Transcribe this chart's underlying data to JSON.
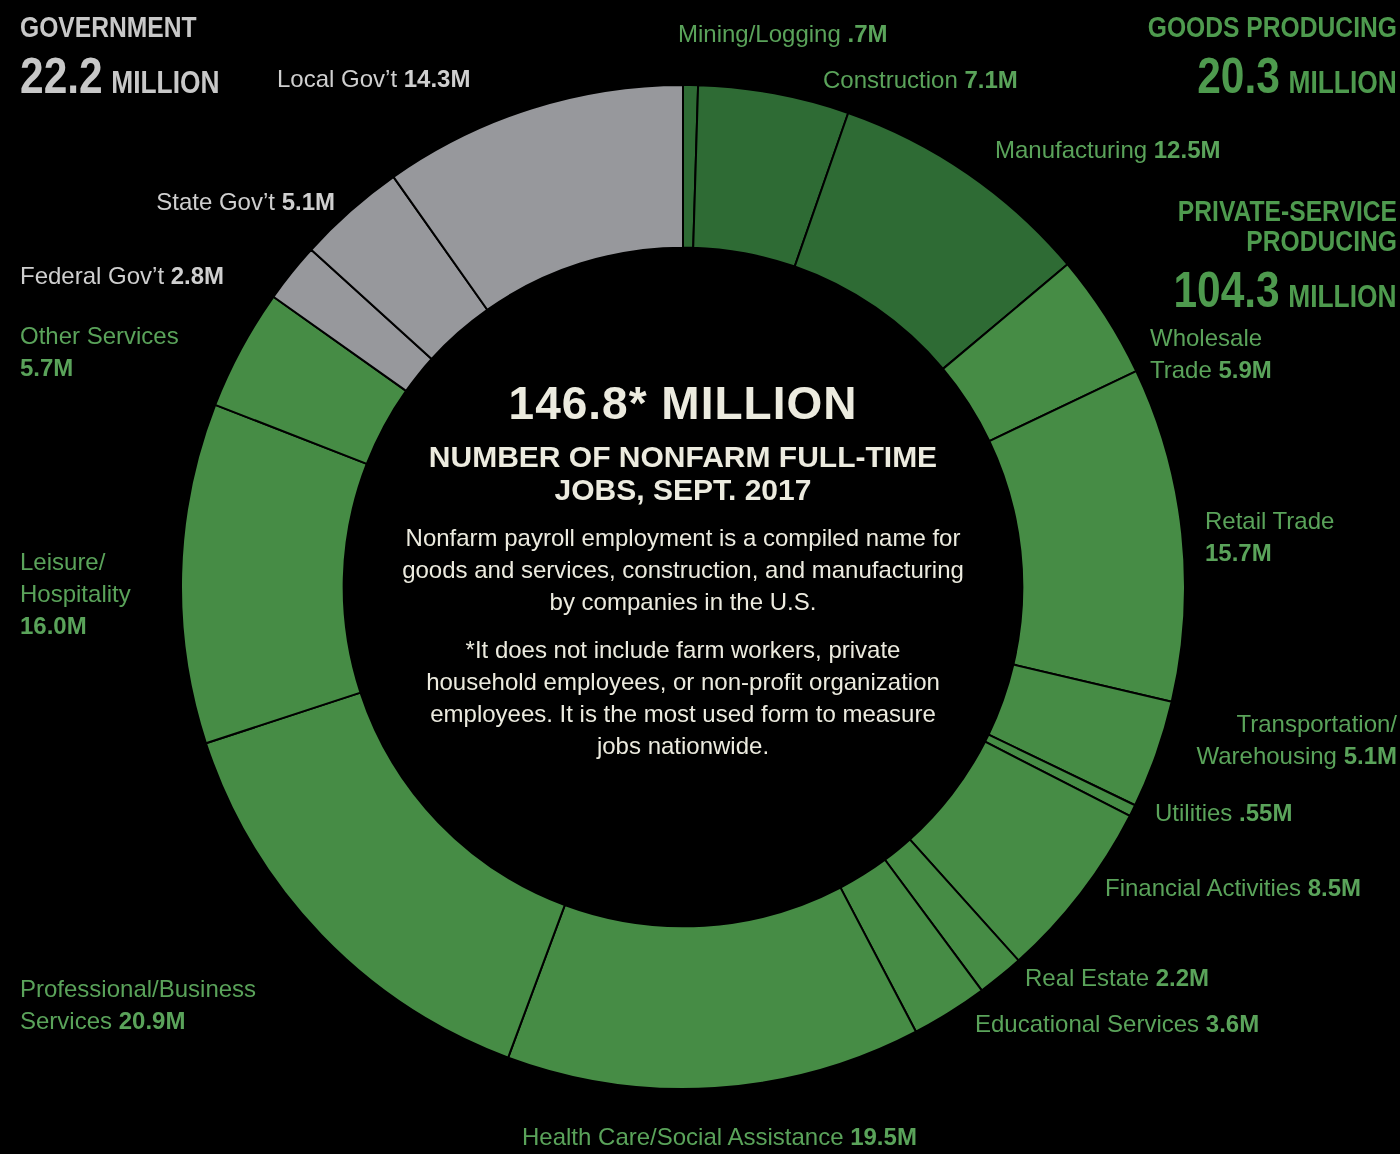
{
  "chart_data": {
    "type": "donut",
    "title": "146.8* MILLION",
    "subtitle": "NUMBER OF NONFARM FULL-TIME JOBS, SEPT. 2017",
    "categories": [
      "Mining/Logging",
      "Construction",
      "Manufacturing",
      "Wholesale Trade",
      "Retail Trade",
      "Transportation/ Warehousing",
      "Utilities",
      "Financial Activities",
      "Real Estate",
      "Educational Services",
      "Health Care/Social Assistance",
      "Professional/Business Services",
      "Leisure/ Hospitality",
      "Other Services",
      "Federal Gov’t",
      "State Gov’t",
      "Local Gov’t"
    ],
    "values": [
      0.7,
      7.1,
      12.5,
      5.9,
      15.7,
      5.1,
      0.55,
      8.5,
      2.2,
      3.6,
      19.5,
      20.9,
      16.0,
      5.7,
      2.8,
      5.1,
      14.3
    ],
    "value_labels": [
      ".7M",
      "7.1M",
      "12.5M",
      "5.9M",
      "15.7M",
      "5.1M",
      ".55M",
      "8.5M",
      "2.2M",
      "3.6M",
      "19.5M",
      "20.9M",
      "16.0M",
      "5.7M",
      "2.8M",
      "5.1M",
      "14.3M"
    ],
    "colors": [
      "#2e6b34",
      "#2e6b34",
      "#2e6b34",
      "#468c45",
      "#468c45",
      "#468c45",
      "#468c45",
      "#468c45",
      "#468c45",
      "#468c45",
      "#468c45",
      "#468c45",
      "#468c45",
      "#468c45",
      "#97989c",
      "#97989c",
      "#97989c"
    ],
    "annotations": [
      "GOVERNMENT",
      "22.2 MILLION",
      "GOODS PRODUCING",
      "20.3 MILLION",
      "PRIVATE-SERVICE PRODUCING",
      "104.3 MILLION",
      "Nonfarm payroll employment is a compiled name for goods and services, construction, and manufacturing by companies in the U.S.",
      "*It does not include farm workers, private household employees, or non-profit organization employees. It is the most used form to measure jobs nationwide."
    ],
    "legend": false
  }
}
